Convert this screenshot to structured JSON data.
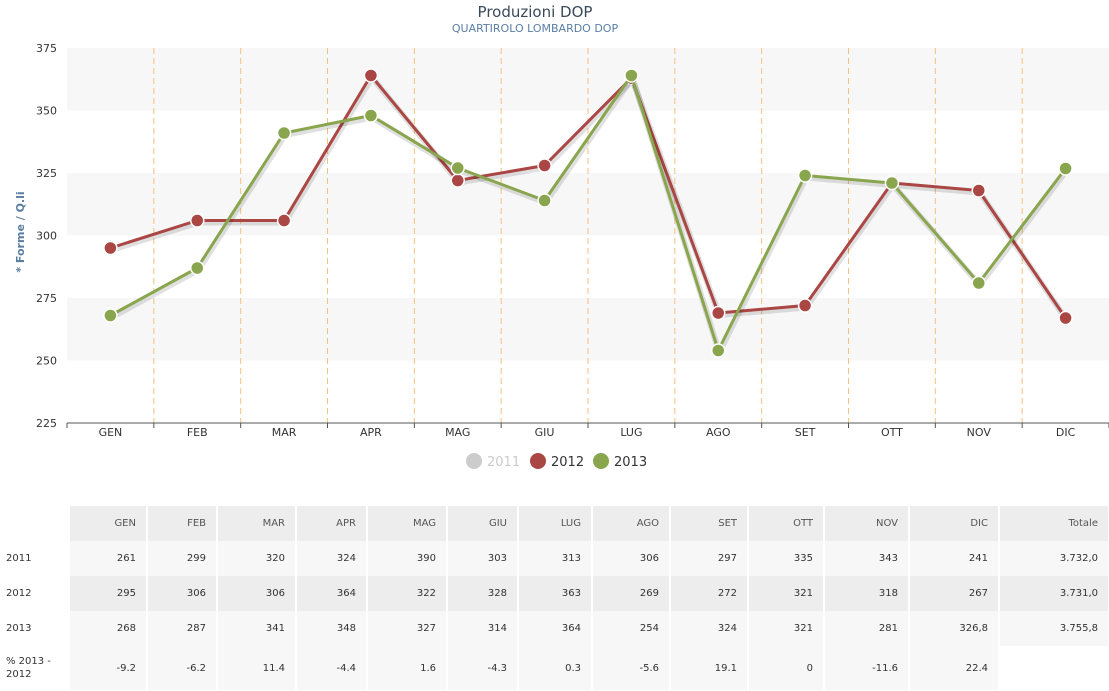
{
  "chart_data": {
    "type": "line",
    "title": "Produzioni DOP",
    "subtitle": "QUARTIROLO LOMBARDO DOP",
    "ylabel": "* Forme / Q.li",
    "xlabel": "",
    "categories": [
      "GEN",
      "FEB",
      "MAR",
      "APR",
      "MAG",
      "GIU",
      "LUG",
      "AGO",
      "SET",
      "OTT",
      "NOV",
      "DIC"
    ],
    "ylim": [
      225,
      375
    ],
    "yticks": [
      225,
      250,
      275,
      300,
      325,
      350,
      375
    ],
    "grid": "alternating horizontal bands with dashed vertical lines between months",
    "legend_position": "bottom-center",
    "series": [
      {
        "name": "2011",
        "visible": false,
        "color": "#cccccc",
        "values": [
          261,
          299,
          320,
          324,
          390,
          303,
          313,
          306,
          297,
          335,
          343,
          241
        ]
      },
      {
        "name": "2012",
        "visible": true,
        "color": "#aa4643",
        "values": [
          295,
          306,
          306,
          364,
          322,
          328,
          363,
          269,
          272,
          321,
          318,
          267
        ]
      },
      {
        "name": "2013",
        "visible": true,
        "color": "#89a54e",
        "values": [
          268,
          287,
          341,
          348,
          327,
          314,
          364,
          254,
          324,
          321,
          281,
          326.8
        ]
      }
    ]
  },
  "table": {
    "headers": [
      "GEN",
      "FEB",
      "MAR",
      "APR",
      "MAG",
      "GIU",
      "LUG",
      "AGO",
      "SET",
      "OTT",
      "NOV",
      "DIC",
      "Totale"
    ],
    "rows": [
      {
        "label": "2011",
        "cells": [
          "261",
          "299",
          "320",
          "324",
          "390",
          "303",
          "313",
          "306",
          "297",
          "335",
          "343",
          "241",
          "3.732,0"
        ]
      },
      {
        "label": "2012",
        "cells": [
          "295",
          "306",
          "306",
          "364",
          "322",
          "328",
          "363",
          "269",
          "272",
          "321",
          "318",
          "267",
          "3.731,0"
        ]
      },
      {
        "label": "2013",
        "cells": [
          "268",
          "287",
          "341",
          "348",
          "327",
          "314",
          "364",
          "254",
          "324",
          "321",
          "281",
          "326,8",
          "3.755,8"
        ]
      },
      {
        "label": "% 2013 - 2012",
        "cells": [
          "-9.2",
          "-6.2",
          "11.4",
          "-4.4",
          "1.6",
          "-4.3",
          "0.3",
          "-5.6",
          "19.1",
          "0",
          "-11.6",
          "22.4",
          ""
        ]
      }
    ]
  }
}
